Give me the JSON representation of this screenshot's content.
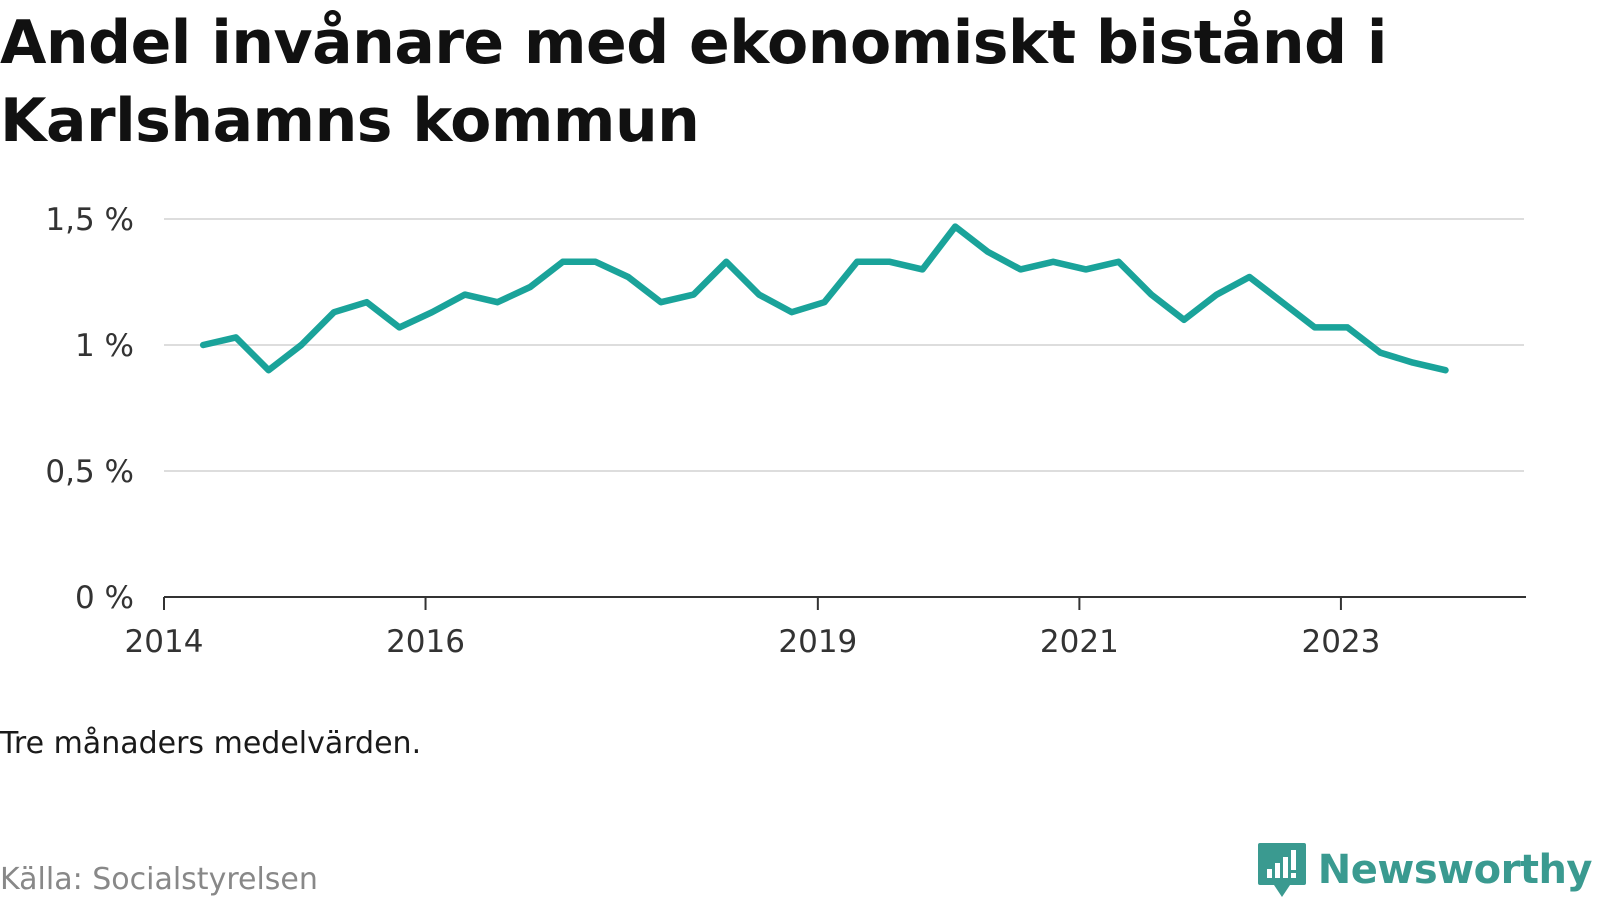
{
  "title": "Andel invånare med ekonomiskt bistånd i Karlshamns kommun",
  "note": "Tre månaders medelvärden.",
  "source": "Källa: Socialstyrelsen",
  "brand": {
    "name": "Newsworthy",
    "icon": "newsworthy-logo-icon",
    "color": "#3a9a90"
  },
  "colors": {
    "line": "#1aa39a",
    "grid": "#dddddd",
    "axis": "#333333"
  },
  "chart_data": {
    "type": "line",
    "title": "",
    "xlabel": "",
    "ylabel": "",
    "ylim": [
      0,
      1.5
    ],
    "xlim": [
      2014.0,
      2024.4
    ],
    "grid": true,
    "y_ticks": [
      {
        "value": 0,
        "label": "0 %"
      },
      {
        "value": 0.5,
        "label": "0,5 %"
      },
      {
        "value": 1.0,
        "label": "1 %"
      },
      {
        "value": 1.5,
        "label": "1,5 %"
      }
    ],
    "x_ticks": [
      {
        "value": 2014,
        "label": "2014"
      },
      {
        "value": 2016,
        "label": "2016"
      },
      {
        "value": 2019,
        "label": "2019"
      },
      {
        "value": 2021,
        "label": "2021"
      },
      {
        "value": 2023,
        "label": "2023"
      }
    ],
    "series": [
      {
        "color": "#1aa39a",
        "x": [
          2014.3,
          2014.55,
          2014.8,
          2015.05,
          2015.3,
          2015.55,
          2015.8,
          2016.05,
          2016.3,
          2016.55,
          2016.8,
          2017.05,
          2017.3,
          2017.55,
          2017.8,
          2018.05,
          2018.3,
          2018.55,
          2018.8,
          2019.05,
          2019.3,
          2019.55,
          2019.8,
          2020.05,
          2020.3,
          2020.55,
          2020.8,
          2021.05,
          2021.3,
          2021.55,
          2021.8,
          2022.05,
          2022.3,
          2022.55,
          2022.8,
          2023.05,
          2023.3,
          2023.55,
          2023.8
        ],
        "y": [
          1.0,
          1.03,
          0.9,
          1.0,
          1.13,
          1.17,
          1.07,
          1.13,
          1.2,
          1.17,
          1.23,
          1.33,
          1.33,
          1.27,
          1.17,
          1.2,
          1.33,
          1.2,
          1.13,
          1.17,
          1.33,
          1.33,
          1.3,
          1.47,
          1.37,
          1.3,
          1.33,
          1.3,
          1.33,
          1.2,
          1.1,
          1.2,
          1.27,
          1.17,
          1.07,
          1.07,
          0.97,
          0.93,
          0.9
        ]
      }
    ]
  }
}
